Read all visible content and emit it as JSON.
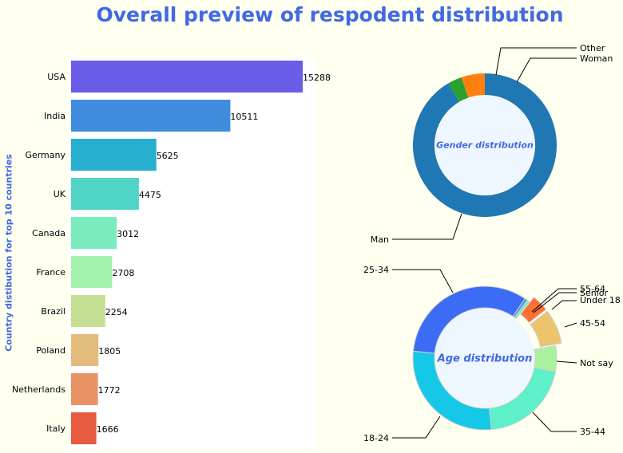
{
  "title": "Overall preview of respodent distribution",
  "chart_data": [
    {
      "type": "bar",
      "orientation": "horizontal",
      "ylabel": "Country distibution for top 10 countries",
      "categories": [
        "USA",
        "India",
        "Germany",
        "UK",
        "Canada",
        "France",
        "Brazil",
        "Poland",
        "Netherlands",
        "Italy"
      ],
      "values": [
        15288,
        10511,
        5625,
        4475,
        3012,
        2708,
        2254,
        1805,
        1772,
        1666
      ],
      "colors": [
        "#6a5de8",
        "#3f8ddc",
        "#26afce",
        "#4fd4c6",
        "#79ebbd",
        "#a2f2ad",
        "#c4de92",
        "#e3bc7c",
        "#e89264",
        "#e65b3e"
      ]
    },
    {
      "type": "pie",
      "style": "donut",
      "center_label": "Gender distribution",
      "slices": [
        {
          "label": "Man",
          "value": 91.5,
          "color": "#1f77b4"
        },
        {
          "label": "Other",
          "value": 3.2,
          "color": "#2ca02c"
        },
        {
          "label": "Woman",
          "value": 5.3,
          "color": "#ff7f0e"
        }
      ]
    },
    {
      "type": "pie",
      "style": "donut",
      "center_label": "Age distribution",
      "slices": [
        {
          "label": "45-54",
          "value": 7.8,
          "color": "#ecc46c",
          "exploded": true
        },
        {
          "label": "Not say",
          "value": 5.8,
          "color": "#a8f29e"
        },
        {
          "label": "35-44",
          "value": 20.5,
          "color": "#5ef0c8"
        },
        {
          "label": "18-24",
          "value": 28.0,
          "color": "#16c8e8"
        },
        {
          "label": "25-34",
          "value": 32.9,
          "color": "#3c6cf5"
        },
        {
          "label": "55-64",
          "value": 0.6,
          "color": "#3a96f0"
        },
        {
          "label": "Senior",
          "value": 0.6,
          "color": "#7deeb0"
        },
        {
          "label": "Under 18",
          "value": 3.8,
          "color": "#ff7034",
          "exploded": true
        }
      ]
    }
  ]
}
